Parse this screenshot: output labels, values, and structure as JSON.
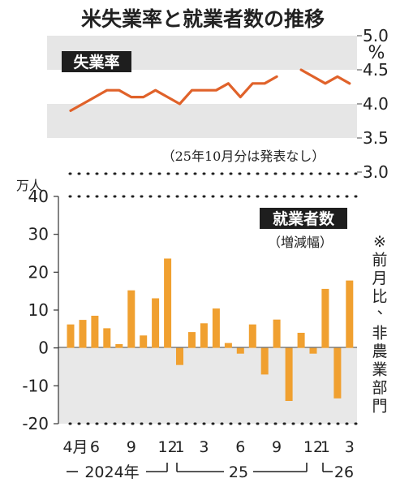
{
  "title": "米失業率と就業者数の推移",
  "colors": {
    "line": "#e0622a",
    "bar": "#f0a030",
    "label_bg": "#1e1e1e",
    "band": "#e6e6e6",
    "text": "#222222"
  },
  "chart_data": [
    {
      "type": "line",
      "label": "失業率",
      "unit": "%",
      "ylim": [
        3.0,
        5.0
      ],
      "yticks": [
        "5.0",
        "4.5",
        "4.0",
        "3.5",
        "3.0"
      ],
      "note": "（25年10月分は発表なし）",
      "x": [
        "2024-04",
        "2024-05",
        "2024-06",
        "2024-07",
        "2024-08",
        "2024-09",
        "2024-10",
        "2024-11",
        "2024-12",
        "2025-01",
        "2025-02",
        "2025-03",
        "2025-04",
        "2025-05",
        "2025-06",
        "2025-07",
        "2025-08",
        "2025-09",
        "2025-10",
        "2025-11",
        "2025-12",
        "2026-01",
        "2026-02",
        "2026-03"
      ],
      "values": [
        3.9,
        4.0,
        4.1,
        4.2,
        4.2,
        4.1,
        4.1,
        4.2,
        4.1,
        4.0,
        4.2,
        4.2,
        4.2,
        4.3,
        4.1,
        4.3,
        4.3,
        4.4,
        null,
        4.5,
        4.4,
        4.3,
        4.4,
        4.3
      ]
    },
    {
      "type": "bar",
      "label": "就業者数",
      "sublabel": "（増減幅）",
      "unit": "万人",
      "ylim": [
        -20,
        40
      ],
      "yticks": [
        "40",
        "30",
        "20",
        "10",
        "0",
        "-10",
        "-20"
      ],
      "side_note": "※前月比、非農業部門",
      "x": [
        "2024-04",
        "2024-05",
        "2024-06",
        "2024-07",
        "2024-08",
        "2024-09",
        "2024-10",
        "2024-11",
        "2024-12",
        "2025-01",
        "2025-02",
        "2025-03",
        "2025-04",
        "2025-05",
        "2025-06",
        "2025-07",
        "2025-08",
        "2025-09",
        "2025-10",
        "2025-11",
        "2025-12",
        "2026-01",
        "2026-02",
        "2026-03"
      ],
      "values": [
        6.2,
        7.4,
        8.5,
        5.2,
        1.0,
        15.2,
        3.3,
        13.1,
        23.6,
        -4.5,
        4.2,
        6.5,
        10.4,
        1.3,
        -1.5,
        6.2,
        -7.0,
        7.5,
        -14.0,
        4.0,
        -1.5,
        15.6,
        -13.3,
        17.8
      ]
    }
  ],
  "x_axis": {
    "tick_labels": [
      "4月",
      "6",
      "9",
      "12",
      "1",
      "3",
      "6",
      "9",
      "12",
      "1",
      "3"
    ],
    "year_labels": [
      "2024年",
      "25",
      "26"
    ]
  }
}
